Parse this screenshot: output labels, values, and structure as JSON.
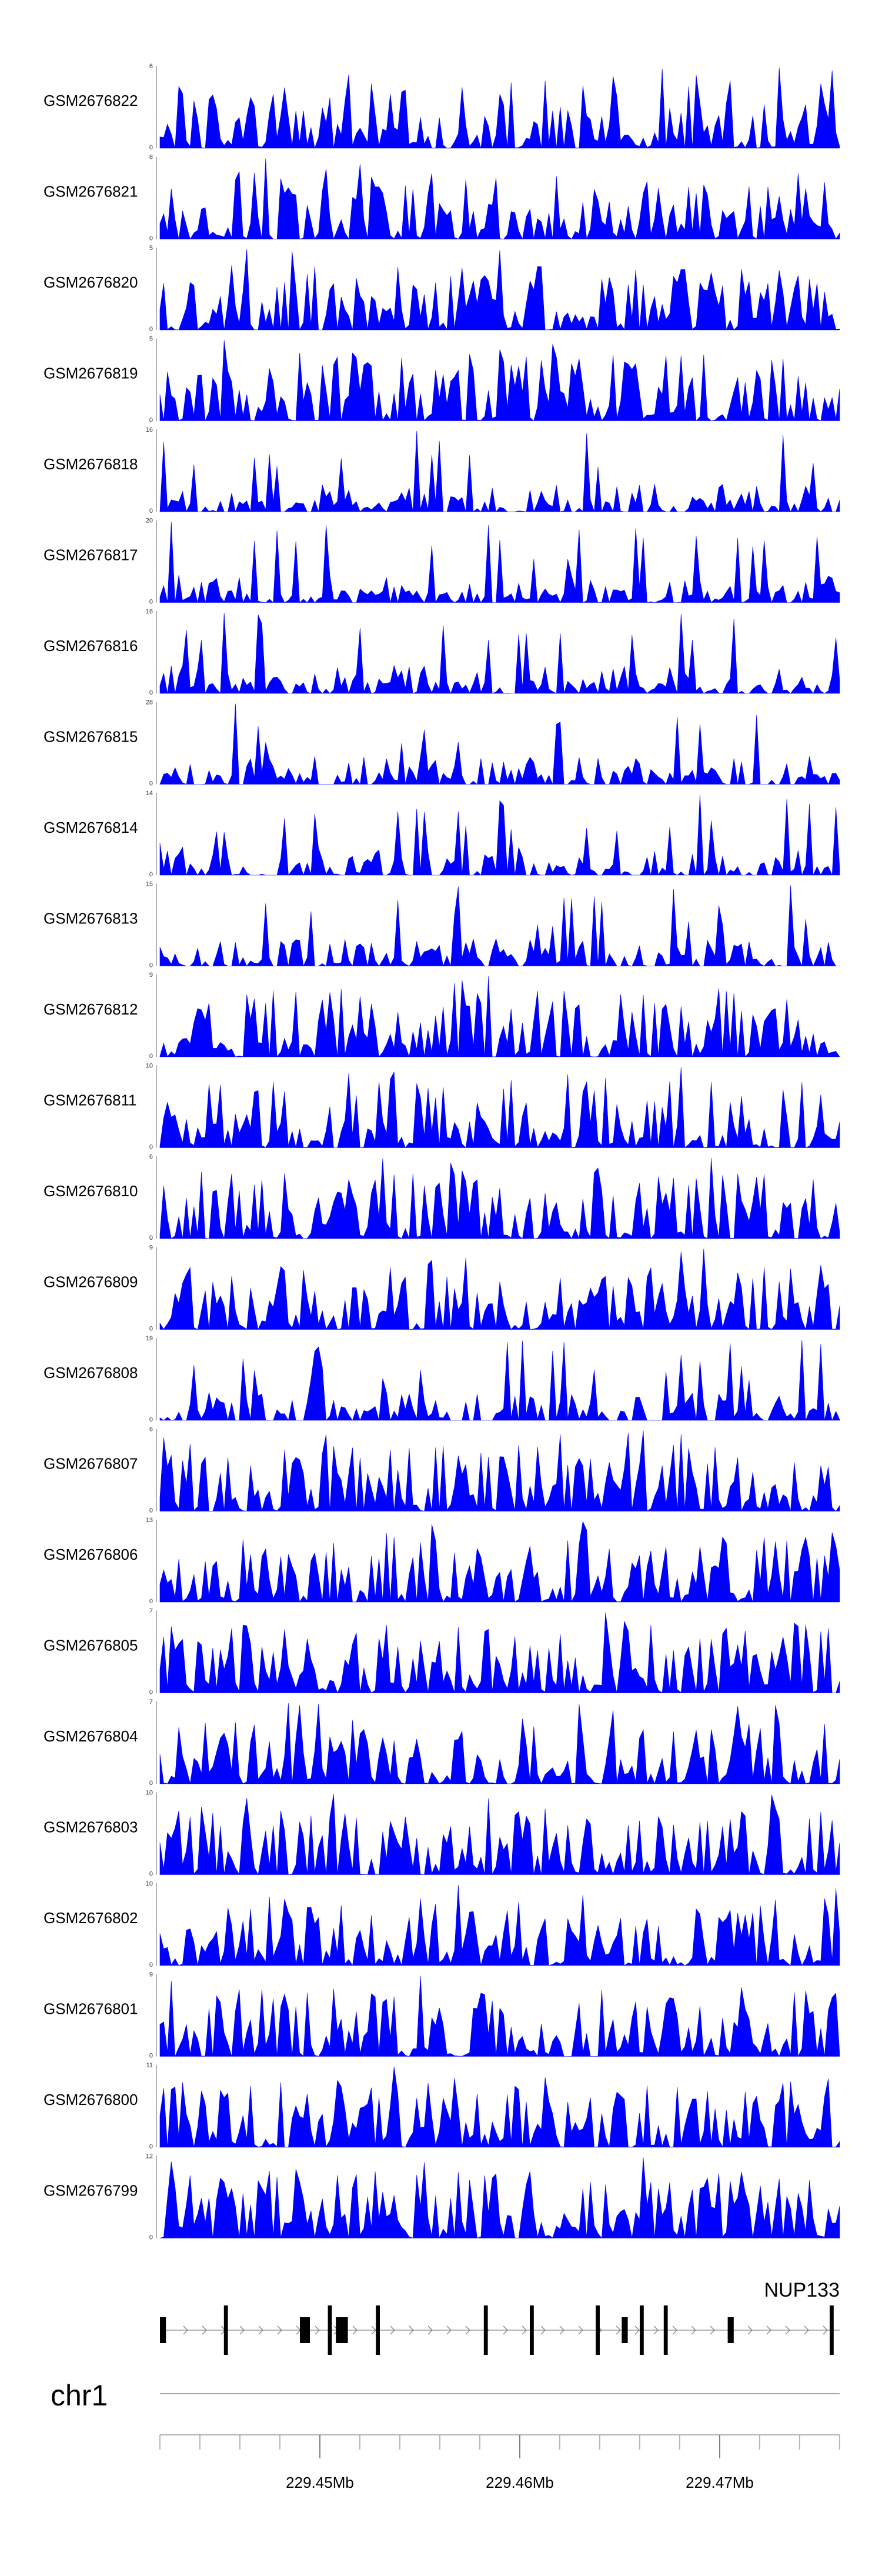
{
  "tracks": [
    {
      "sample": "GSM2676822",
      "ymax": "6",
      "ymin": "0",
      "peak_max": 6
    },
    {
      "sample": "GSM2676821",
      "ymax": "8",
      "ymin": "0",
      "peak_max": 8
    },
    {
      "sample": "GSM2676820",
      "ymax": "5",
      "ymin": "0",
      "peak_max": 5
    },
    {
      "sample": "GSM2676819",
      "ymax": "5",
      "ymin": "0",
      "peak_max": 5
    },
    {
      "sample": "GSM2676818",
      "ymax": "16",
      "ymin": "0",
      "peak_max": 16
    },
    {
      "sample": "GSM2676817",
      "ymax": "20",
      "ymin": "0",
      "peak_max": 20
    },
    {
      "sample": "GSM2676816",
      "ymax": "16",
      "ymin": "0",
      "peak_max": 16
    },
    {
      "sample": "GSM2676815",
      "ymax": "28",
      "ymin": "0",
      "peak_max": 28
    },
    {
      "sample": "GSM2676814",
      "ymax": "14",
      "ymin": "0",
      "peak_max": 14
    },
    {
      "sample": "GSM2676813",
      "ymax": "15",
      "ymin": "0",
      "peak_max": 15
    },
    {
      "sample": "GSM2676812",
      "ymax": "9",
      "ymin": "0",
      "peak_max": 9
    },
    {
      "sample": "GSM2676811",
      "ymax": "10",
      "ymin": "0",
      "peak_max": 10
    },
    {
      "sample": "GSM2676810",
      "ymax": "6",
      "ymin": "0",
      "peak_max": 6
    },
    {
      "sample": "GSM2676809",
      "ymax": "9",
      "ymin": "0",
      "peak_max": 9
    },
    {
      "sample": "GSM2676808",
      "ymax": "19",
      "ymin": "0",
      "peak_max": 19
    },
    {
      "sample": "GSM2676807",
      "ymax": "6",
      "ymin": "0",
      "peak_max": 6
    },
    {
      "sample": "GSM2676806",
      "ymax": "13",
      "ymin": "0",
      "peak_max": 13
    },
    {
      "sample": "GSM2676805",
      "ymax": "7",
      "ymin": "0",
      "peak_max": 7
    },
    {
      "sample": "GSM2676804",
      "ymax": "7",
      "ymin": "0",
      "peak_max": 7
    },
    {
      "sample": "GSM2676803",
      "ymax": "10",
      "ymin": "0",
      "peak_max": 10
    },
    {
      "sample": "GSM2676802",
      "ymax": "10",
      "ymin": "0",
      "peak_max": 10
    },
    {
      "sample": "GSM2676801",
      "ymax": "9",
      "ymin": "0",
      "peak_max": 9
    },
    {
      "sample": "GSM2676800",
      "ymax": "11",
      "ymin": "0",
      "peak_max": 11
    },
    {
      "sample": "GSM2676799",
      "ymax": "12",
      "ymin": "0",
      "peak_max": 12
    }
  ],
  "gene_track": {
    "gene_name": "NUP133",
    "strand": "-",
    "region_start_mb": 229.442,
    "region_end_mb": 229.476,
    "exons_mb": [
      [
        229.442,
        229.4423
      ],
      [
        229.4452,
        229.4454
      ],
      [
        229.449,
        229.4495
      ],
      [
        229.4504,
        229.4506
      ],
      [
        229.4508,
        229.4514
      ],
      [
        229.4528,
        229.453
      ],
      [
        229.4582,
        229.4584
      ],
      [
        229.4605,
        229.4607
      ],
      [
        229.4638,
        229.464
      ],
      [
        229.4651,
        229.4654
      ],
      [
        229.466,
        229.4662
      ],
      [
        229.4672,
        229.4674
      ],
      [
        229.4704,
        229.4707
      ],
      [
        229.4755,
        229.4757
      ]
    ]
  },
  "chart_data": {
    "type": "area",
    "title": "",
    "color": "#0000ff",
    "xlabel": "chr1",
    "x_range_mb": [
      229.442,
      229.476
    ],
    "genome_axis": {
      "chromosome": "chr1",
      "major_ticks_mb": [
        229.45,
        229.46,
        229.47
      ],
      "tick_labels": [
        "229.45Mb",
        "229.46Mb",
        "229.47Mb"
      ],
      "minor_tick_step_mb": 0.002
    },
    "series_note": "24 coverage tracks; peak heights in data units per track"
  }
}
